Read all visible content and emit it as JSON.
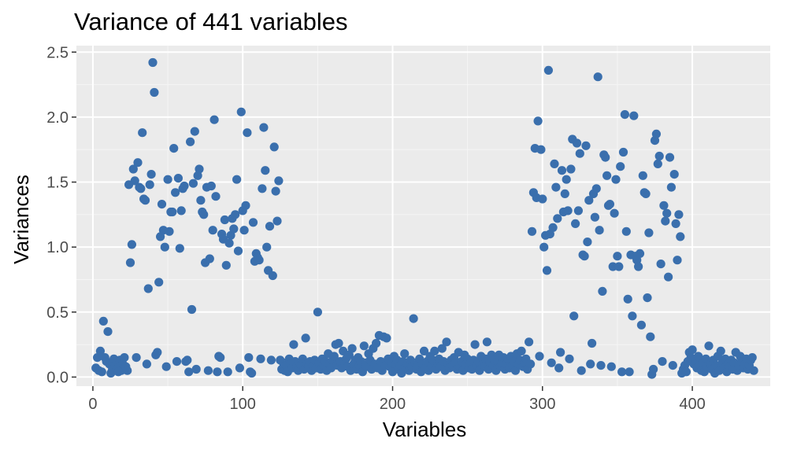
{
  "chart_data": {
    "type": "scatter",
    "title": "Variance of 441 variables",
    "xlabel": "Variables",
    "ylabel": "Variances",
    "xlim": [
      -11,
      452
    ],
    "ylim": [
      -0.07,
      2.55
    ],
    "x_ticks": [
      0,
      100,
      200,
      300,
      400
    ],
    "x_tick_labels": [
      "0",
      "100",
      "200",
      "300",
      "400"
    ],
    "y_ticks": [
      0.0,
      0.5,
      1.0,
      1.5,
      2.0,
      2.5
    ],
    "y_tick_labels": [
      "0.0",
      "0.5",
      "1.0",
      "1.5",
      "2.0",
      "2.5"
    ],
    "grid": true,
    "theme": "ggplot2-grey",
    "point_color": "#3a6fad",
    "points": [
      [
        2,
        0.07
      ],
      [
        3,
        0.15
      ],
      [
        4,
        0.05
      ],
      [
        5,
        0.2
      ],
      [
        6,
        0.04
      ],
      [
        7,
        0.43
      ],
      [
        8,
        0.15
      ],
      [
        9,
        0.12
      ],
      [
        10,
        0.35
      ],
      [
        11,
        0.1
      ],
      [
        12,
        0.03
      ],
      [
        13,
        0.06
      ],
      [
        14,
        0.14
      ],
      [
        15,
        0.09
      ],
      [
        16,
        0.06
      ],
      [
        17,
        0.04
      ],
      [
        18,
        0.13
      ],
      [
        19,
        0.05
      ],
      [
        20,
        0.1
      ],
      [
        21,
        0.15
      ],
      [
        22,
        0.08
      ],
      [
        23,
        0.05
      ],
      [
        24,
        1.48
      ],
      [
        25,
        0.88
      ],
      [
        26,
        1.02
      ],
      [
        27,
        1.6
      ],
      [
        28,
        1.51
      ],
      [
        29,
        0.15
      ],
      [
        30,
        1.65
      ],
      [
        31,
        1.46
      ],
      [
        32,
        1.45
      ],
      [
        33,
        1.88
      ],
      [
        34,
        1.37
      ],
      [
        35,
        1.36
      ],
      [
        36,
        0.1
      ],
      [
        37,
        0.68
      ],
      [
        38,
        1.48
      ],
      [
        39,
        1.56
      ],
      [
        40,
        2.42
      ],
      [
        41,
        2.19
      ],
      [
        42,
        0.17
      ],
      [
        43,
        0.19
      ],
      [
        44,
        0.73
      ],
      [
        45,
        1.08
      ],
      [
        46,
        1.33
      ],
      [
        47,
        1.13
      ],
      [
        48,
        1.0
      ],
      [
        49,
        0.08
      ],
      [
        50,
        1.52
      ],
      [
        51,
        1.12
      ],
      [
        52,
        1.27
      ],
      [
        53,
        1.27
      ],
      [
        54,
        1.76
      ],
      [
        55,
        1.42
      ],
      [
        56,
        0.12
      ],
      [
        57,
        1.53
      ],
      [
        58,
        0.99
      ],
      [
        59,
        1.28
      ],
      [
        60,
        1.45
      ],
      [
        61,
        1.47
      ],
      [
        62,
        0.12
      ],
      [
        63,
        0.13
      ],
      [
        64,
        0.04
      ],
      [
        65,
        1.81
      ],
      [
        66,
        0.52
      ],
      [
        67,
        1.49
      ],
      [
        68,
        1.89
      ],
      [
        69,
        0.06
      ],
      [
        70,
        1.55
      ],
      [
        71,
        1.6
      ],
      [
        72,
        1.36
      ],
      [
        73,
        1.27
      ],
      [
        74,
        1.25
      ],
      [
        75,
        0.88
      ],
      [
        76,
        1.46
      ],
      [
        77,
        0.05
      ],
      [
        78,
        0.91
      ],
      [
        79,
        1.47
      ],
      [
        80,
        1.13
      ],
      [
        81,
        1.98
      ],
      [
        82,
        1.39
      ],
      [
        83,
        0.04
      ],
      [
        84,
        0.16
      ],
      [
        85,
        0.15
      ],
      [
        86,
        1.1
      ],
      [
        87,
        1.06
      ],
      [
        88,
        1.21
      ],
      [
        89,
        0.86
      ],
      [
        90,
        0.04
      ],
      [
        91,
        1.03
      ],
      [
        92,
        1.09
      ],
      [
        93,
        1.22
      ],
      [
        94,
        1.14
      ],
      [
        95,
        1.25
      ],
      [
        96,
        1.52
      ],
      [
        97,
        0.97
      ],
      [
        98,
        0.07
      ],
      [
        99,
        2.04
      ],
      [
        100,
        1.28
      ],
      [
        101,
        1.13
      ],
      [
        102,
        1.32
      ],
      [
        103,
        1.88
      ],
      [
        104,
        0.15
      ],
      [
        105,
        0.04
      ],
      [
        106,
        0.03
      ],
      [
        107,
        1.19
      ],
      [
        108,
        0.89
      ],
      [
        109,
        0.95
      ],
      [
        110,
        0.92
      ],
      [
        111,
        0.9
      ],
      [
        112,
        0.14
      ],
      [
        113,
        1.45
      ],
      [
        114,
        1.92
      ],
      [
        115,
        1.59
      ],
      [
        116,
        1.0
      ],
      [
        117,
        0.82
      ],
      [
        118,
        1.16
      ],
      [
        119,
        0.13
      ],
      [
        120,
        0.78
      ],
      [
        121,
        1.77
      ],
      [
        122,
        1.43
      ],
      [
        123,
        1.2
      ],
      [
        124,
        1.51
      ],
      [
        125,
        0.13
      ],
      [
        126,
        0.06
      ],
      [
        127,
        0.11
      ],
      [
        128,
        0.05
      ],
      [
        129,
        0.09
      ],
      [
        130,
        0.04
      ],
      [
        131,
        0.14
      ],
      [
        132,
        0.1
      ],
      [
        133,
        0.07
      ],
      [
        134,
        0.25
      ],
      [
        135,
        0.12
      ],
      [
        136,
        0.08
      ],
      [
        137,
        0.05
      ],
      [
        138,
        0.11
      ],
      [
        139,
        0.09
      ],
      [
        140,
        0.14
      ],
      [
        141,
        0.06
      ],
      [
        142,
        0.3
      ],
      [
        143,
        0.1
      ],
      [
        144,
        0.08
      ],
      [
        145,
        0.12
      ],
      [
        146,
        0.05
      ],
      [
        147,
        0.09
      ],
      [
        148,
        0.13
      ],
      [
        149,
        0.07
      ],
      [
        150,
        0.5
      ],
      [
        151,
        0.11
      ],
      [
        152,
        0.06
      ],
      [
        153,
        0.14
      ],
      [
        154,
        0.09
      ],
      [
        155,
        0.12
      ],
      [
        156,
        0.05
      ],
      [
        157,
        0.18
      ],
      [
        158,
        0.1
      ],
      [
        159,
        0.07
      ],
      [
        160,
        0.13
      ],
      [
        161,
        0.16
      ],
      [
        162,
        0.25
      ],
      [
        163,
        0.09
      ],
      [
        164,
        0.26
      ],
      [
        165,
        0.12
      ],
      [
        166,
        0.07
      ],
      [
        167,
        0.2
      ],
      [
        168,
        0.11
      ],
      [
        169,
        0.14
      ],
      [
        170,
        0.08
      ],
      [
        171,
        0.17
      ],
      [
        172,
        0.05
      ],
      [
        173,
        0.22
      ],
      [
        174,
        0.1
      ],
      [
        175,
        0.13
      ],
      [
        176,
        0.06
      ],
      [
        177,
        0.15
      ],
      [
        178,
        0.09
      ],
      [
        179,
        0.12
      ],
      [
        180,
        0.04
      ],
      [
        181,
        0.24
      ],
      [
        182,
        0.11
      ],
      [
        183,
        0.08
      ],
      [
        184,
        0.18
      ],
      [
        185,
        0.13
      ],
      [
        186,
        0.06
      ],
      [
        187,
        0.22
      ],
      [
        188,
        0.1
      ],
      [
        189,
        0.26
      ],
      [
        190,
        0.07
      ],
      [
        191,
        0.32
      ],
      [
        192,
        0.12
      ],
      [
        193,
        0.05
      ],
      [
        194,
        0.31
      ],
      [
        195,
        0.09
      ],
      [
        196,
        0.3
      ],
      [
        197,
        0.14
      ],
      [
        198,
        0.08
      ],
      [
        199,
        0.11
      ],
      [
        200,
        0.04
      ],
      [
        201,
        0.16
      ],
      [
        202,
        0.1
      ],
      [
        203,
        0.13
      ],
      [
        204,
        0.06
      ],
      [
        205,
        0.09
      ],
      [
        206,
        0.03
      ],
      [
        207,
        0.12
      ],
      [
        208,
        0.18
      ],
      [
        209,
        0.07
      ],
      [
        210,
        0.1
      ],
      [
        211,
        0.05
      ],
      [
        212,
        0.13
      ],
      [
        213,
        0.08
      ],
      [
        214,
        0.45
      ],
      [
        215,
        0.11
      ],
      [
        216,
        0.06
      ],
      [
        217,
        0.09
      ],
      [
        218,
        0.14
      ],
      [
        219,
        0.04
      ],
      [
        220,
        0.1
      ],
      [
        221,
        0.2
      ],
      [
        222,
        0.07
      ],
      [
        223,
        0.12
      ],
      [
        224,
        0.05
      ],
      [
        225,
        0.16
      ],
      [
        226,
        0.09
      ],
      [
        227,
        0.13
      ],
      [
        228,
        0.2
      ],
      [
        229,
        0.06
      ],
      [
        230,
        0.11
      ],
      [
        231,
        0.14
      ],
      [
        232,
        0.08
      ],
      [
        233,
        0.22
      ],
      [
        234,
        0.12
      ],
      [
        235,
        0.05
      ],
      [
        236,
        0.27
      ],
      [
        237,
        0.1
      ],
      [
        238,
        0.07
      ],
      [
        239,
        0.13
      ],
      [
        240,
        0.09
      ],
      [
        241,
        0.15
      ],
      [
        242,
        0.11
      ],
      [
        243,
        0.06
      ],
      [
        244,
        0.19
      ],
      [
        245,
        0.08
      ],
      [
        246,
        0.12
      ],
      [
        247,
        0.05
      ],
      [
        248,
        0.17
      ],
      [
        249,
        0.1
      ],
      [
        250,
        0.14
      ],
      [
        251,
        0.07
      ],
      [
        252,
        0.11
      ],
      [
        253,
        0.06
      ],
      [
        254,
        0.13
      ],
      [
        255,
        0.25
      ],
      [
        256,
        0.09
      ],
      [
        257,
        0.12
      ],
      [
        258,
        0.05
      ],
      [
        259,
        0.16
      ],
      [
        260,
        0.1
      ],
      [
        261,
        0.08
      ],
      [
        262,
        0.14
      ],
      [
        263,
        0.27
      ],
      [
        264,
        0.06
      ],
      [
        265,
        0.11
      ],
      [
        266,
        0.17
      ],
      [
        267,
        0.09
      ],
      [
        268,
        0.13
      ],
      [
        269,
        0.05
      ],
      [
        270,
        0.12
      ],
      [
        271,
        0.17
      ],
      [
        272,
        0.08
      ],
      [
        273,
        0.11
      ],
      [
        274,
        0.15
      ],
      [
        275,
        0.06
      ],
      [
        276,
        0.1
      ],
      [
        277,
        0.14
      ],
      [
        278,
        0.07
      ],
      [
        279,
        0.16
      ],
      [
        280,
        0.09
      ],
      [
        281,
        0.12
      ],
      [
        282,
        0.05
      ],
      [
        283,
        0.18
      ],
      [
        284,
        0.1
      ],
      [
        285,
        0.13
      ],
      [
        286,
        0.2
      ],
      [
        287,
        0.08
      ],
      [
        288,
        0.11
      ],
      [
        289,
        0.14
      ],
      [
        290,
        0.06
      ],
      [
        291,
        0.27
      ],
      [
        292,
        0.1
      ],
      [
        293,
        1.12
      ],
      [
        294,
        1.42
      ],
      [
        295,
        1.76
      ],
      [
        296,
        1.38
      ],
      [
        297,
        1.97
      ],
      [
        298,
        0.16
      ],
      [
        299,
        1.75
      ],
      [
        300,
        1.37
      ],
      [
        301,
        1.0
      ],
      [
        302,
        1.09
      ],
      [
        303,
        0.82
      ],
      [
        304,
        2.36
      ],
      [
        305,
        1.1
      ],
      [
        306,
        0.11
      ],
      [
        307,
        1.15
      ],
      [
        308,
        1.64
      ],
      [
        309,
        1.46
      ],
      [
        310,
        1.22
      ],
      [
        311,
        0.07
      ],
      [
        312,
        0.19
      ],
      [
        313,
        1.59
      ],
      [
        314,
        1.27
      ],
      [
        315,
        1.41
      ],
      [
        316,
        1.52
      ],
      [
        317,
        1.28
      ],
      [
        318,
        0.14
      ],
      [
        319,
        1.6
      ],
      [
        320,
        1.83
      ],
      [
        321,
        0.47
      ],
      [
        322,
        1.18
      ],
      [
        323,
        1.8
      ],
      [
        324,
        1.28
      ],
      [
        325,
        1.72
      ],
      [
        326,
        0.05
      ],
      [
        327,
        0.94
      ],
      [
        328,
        0.93
      ],
      [
        329,
        1.78
      ],
      [
        330,
        1.04
      ],
      [
        331,
        1.36
      ],
      [
        332,
        0.1
      ],
      [
        333,
        0.26
      ],
      [
        334,
        1.41
      ],
      [
        335,
        1.23
      ],
      [
        336,
        1.45
      ],
      [
        337,
        2.31
      ],
      [
        338,
        1.13
      ],
      [
        339,
        0.09
      ],
      [
        340,
        0.66
      ],
      [
        341,
        1.71
      ],
      [
        342,
        1.69
      ],
      [
        343,
        1.55
      ],
      [
        344,
        1.32
      ],
      [
        345,
        1.33
      ],
      [
        346,
        0.08
      ],
      [
        347,
        0.85
      ],
      [
        348,
        1.26
      ],
      [
        349,
        1.52
      ],
      [
        350,
        0.93
      ],
      [
        351,
        0.85
      ],
      [
        352,
        1.62
      ],
      [
        353,
        0.04
      ],
      [
        354,
        1.73
      ],
      [
        355,
        2.02
      ],
      [
        356,
        1.12
      ],
      [
        357,
        0.6
      ],
      [
        358,
        0.04
      ],
      [
        359,
        0.94
      ],
      [
        360,
        0.47
      ],
      [
        361,
        2.01
      ],
      [
        362,
        0.93
      ],
      [
        363,
        0.9
      ],
      [
        364,
        0.85
      ],
      [
        365,
        0.95
      ],
      [
        366,
        0.4
      ],
      [
        367,
        1.55
      ],
      [
        368,
        1.42
      ],
      [
        369,
        1.41
      ],
      [
        370,
        0.61
      ],
      [
        371,
        1.11
      ],
      [
        372,
        0.31
      ],
      [
        373,
        0.02
      ],
      [
        374,
        0.06
      ],
      [
        375,
        1.82
      ],
      [
        376,
        1.87
      ],
      [
        377,
        1.64
      ],
      [
        378,
        1.7
      ],
      [
        379,
        0.87
      ],
      [
        380,
        0.12
      ],
      [
        381,
        1.32
      ],
      [
        382,
        1.2
      ],
      [
        383,
        1.26
      ],
      [
        384,
        0.77
      ],
      [
        385,
        1.69
      ],
      [
        386,
        1.46
      ],
      [
        387,
        0.09
      ],
      [
        388,
        1.56
      ],
      [
        389,
        1.18
      ],
      [
        390,
        0.9
      ],
      [
        391,
        1.25
      ],
      [
        392,
        1.08
      ],
      [
        393,
        0.03
      ],
      [
        394,
        0.06
      ],
      [
        395,
        0.09
      ],
      [
        396,
        0.04
      ],
      [
        397,
        0.12
      ],
      [
        398,
        0.19
      ],
      [
        399,
        0.15
      ],
      [
        400,
        0.21
      ],
      [
        401,
        0.1
      ],
      [
        402,
        0.13
      ],
      [
        403,
        0.07
      ],
      [
        404,
        0.16
      ],
      [
        405,
        0.09
      ],
      [
        406,
        0.05
      ],
      [
        407,
        0.11
      ],
      [
        408,
        0.04
      ],
      [
        409,
        0.14
      ],
      [
        410,
        0.08
      ],
      [
        411,
        0.24
      ],
      [
        412,
        0.1
      ],
      [
        413,
        0.06
      ],
      [
        414,
        0.13
      ],
      [
        415,
        0.03
      ],
      [
        416,
        0.09
      ],
      [
        417,
        0.16
      ],
      [
        418,
        0.05
      ],
      [
        419,
        0.2
      ],
      [
        420,
        0.11
      ],
      [
        421,
        0.07
      ],
      [
        422,
        0.14
      ],
      [
        423,
        0.04
      ],
      [
        424,
        0.1
      ],
      [
        425,
        0.08
      ],
      [
        426,
        0.13
      ],
      [
        427,
        0.06
      ],
      [
        428,
        0.11
      ],
      [
        429,
        0.19
      ],
      [
        430,
        0.05
      ],
      [
        431,
        0.09
      ],
      [
        432,
        0.16
      ],
      [
        433,
        0.12
      ],
      [
        434,
        0.07
      ],
      [
        435,
        0.1
      ],
      [
        436,
        0.14
      ],
      [
        437,
        0.06
      ],
      [
        438,
        0.09
      ],
      [
        439,
        0.13
      ],
      [
        440,
        0.15
      ],
      [
        441,
        0.05
      ]
    ]
  }
}
